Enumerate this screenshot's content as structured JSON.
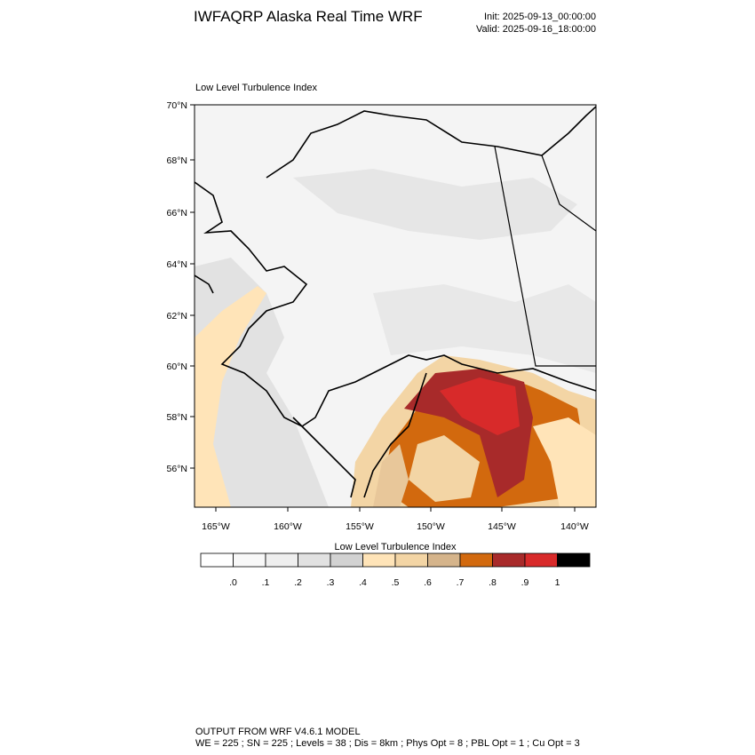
{
  "header": {
    "title": "IWFAQRP Alaska Real Time WRF",
    "init": "Init: 2025-09-13_00:00:00",
    "valid": "Valid: 2025-09-16_18:00:00"
  },
  "map": {
    "title": "Low Level Turbulence Index",
    "lat_labels": [
      "70°N",
      "68°N",
      "66°N",
      "64°N",
      "62°N",
      "60°N",
      "58°N",
      "56°N"
    ],
    "lon_labels": [
      "165°W",
      "160°W",
      "155°W",
      "150°W",
      "145°W",
      "140°W"
    ]
  },
  "colorbar": {
    "title": "Low Level Turbulence Index",
    "colors": [
      "#ffffff",
      "#f8f8f8",
      "#efefef",
      "#e1e1e1",
      "#d2d2d2",
      "#ffe4b8",
      "#f3d5a5",
      "#d5b48b",
      "#d2690e",
      "#a82a2a",
      "#d82a2a",
      "#000000"
    ],
    "ticks": [
      {
        "value": 0,
        "label": ".0"
      },
      {
        "value": 0.1,
        "label": ".1"
      },
      {
        "value": 0.2,
        "label": ".2"
      },
      {
        "value": 0.3,
        "label": ".3"
      },
      {
        "value": 0.4,
        "label": ".4"
      },
      {
        "value": 0.5,
        "label": ".5"
      },
      {
        "value": 0.6,
        "label": ".6"
      },
      {
        "value": 0.7,
        "label": ".7"
      },
      {
        "value": 0.8,
        "label": ".8"
      },
      {
        "value": 0.9,
        "label": ".9"
      },
      1
    ]
  },
  "footer": {
    "line1": "OUTPUT FROM WRF V4.6.1 MODEL",
    "line2": "WE = 225 ; SN = 225 ; Levels = 38 ; Dis = 8km ; Phys Opt = 8 ; PBL Opt = 1 ; Cu Opt = 3"
  }
}
